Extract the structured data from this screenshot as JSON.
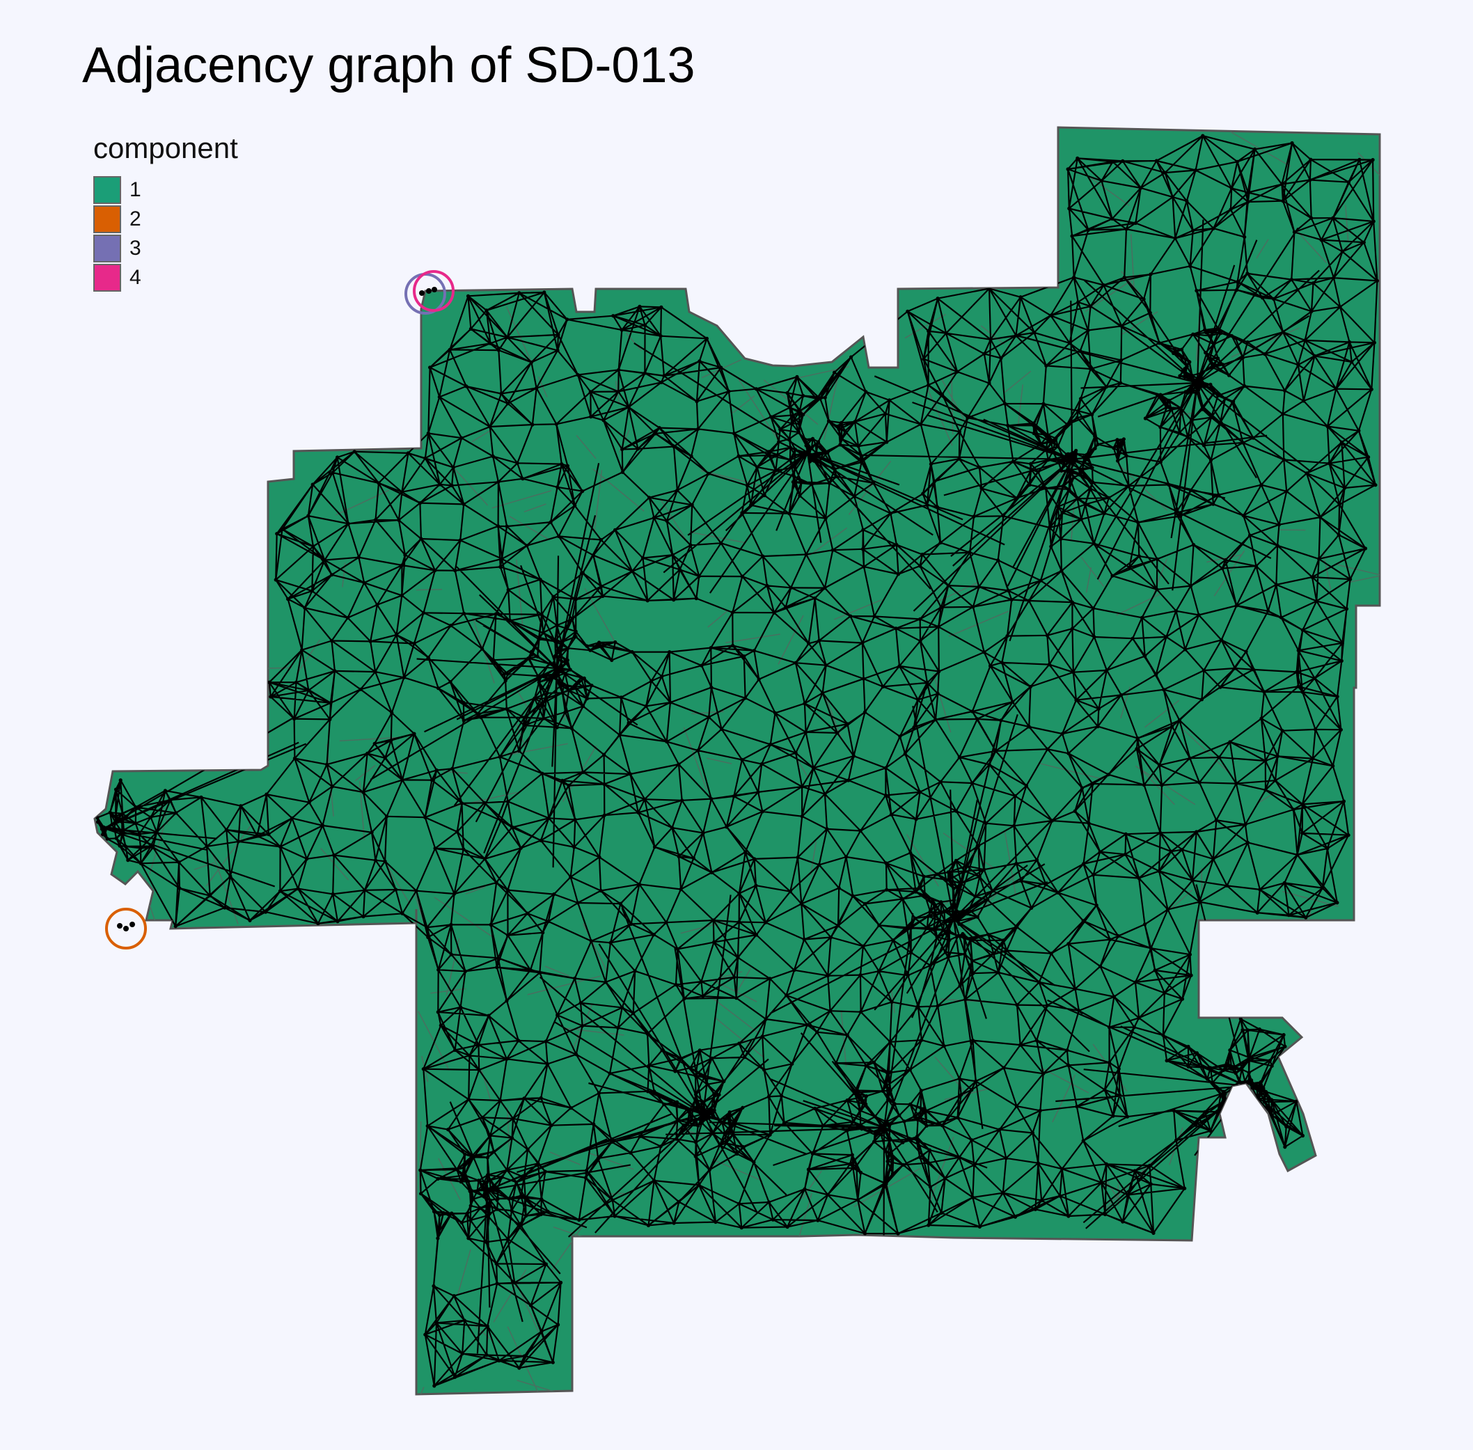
{
  "title": "Adjacency graph of SD-013",
  "legend": {
    "title": "component",
    "items": [
      {
        "label": "1",
        "color": "#1b9e77"
      },
      {
        "label": "2",
        "color": "#d95f02"
      },
      {
        "label": "3",
        "color": "#7570b3"
      },
      {
        "label": "4",
        "color": "#e7298a"
      }
    ]
  },
  "map": {
    "fill": "#1f9467",
    "border": "#555555",
    "edge_color": "#000000",
    "node_color": "#000000"
  }
}
